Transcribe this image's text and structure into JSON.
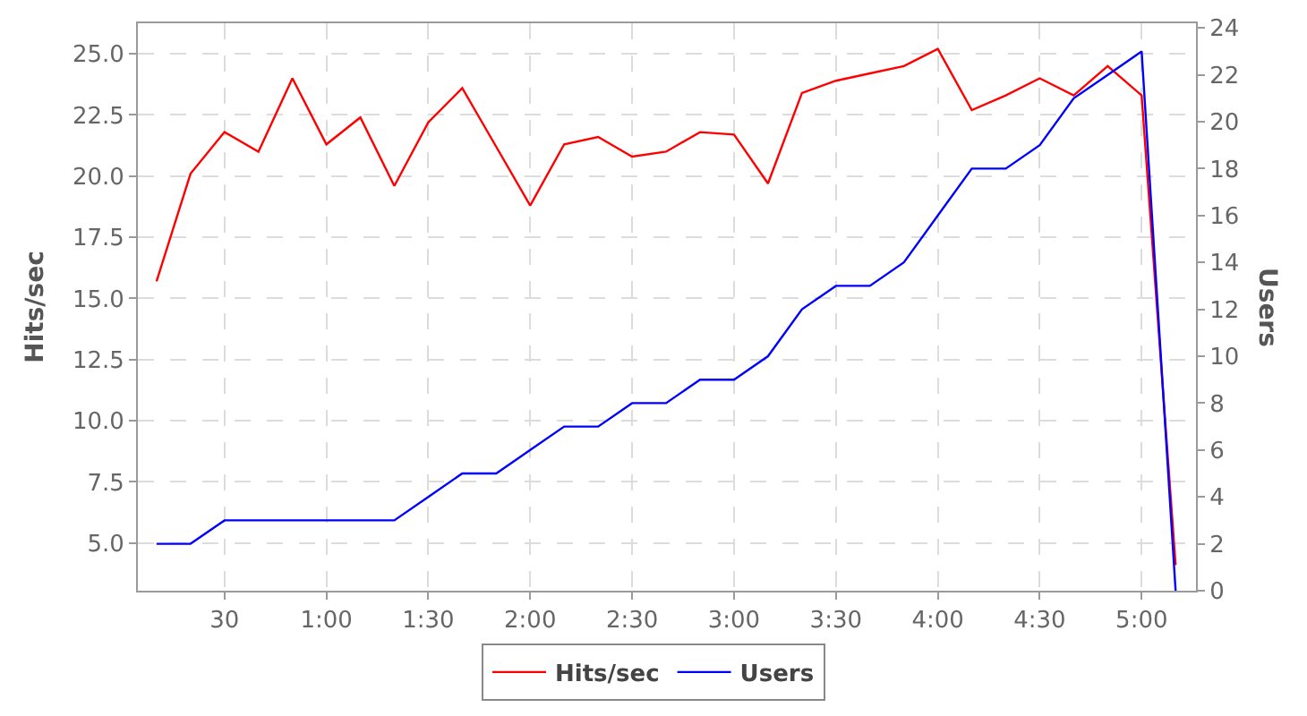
{
  "chart_data": {
    "type": "line",
    "ylabel": "Hits/sec",
    "y2label": "Users",
    "x": [
      10,
      20,
      30,
      40,
      50,
      60,
      70,
      80,
      90,
      100,
      110,
      120,
      130,
      140,
      150,
      160,
      170,
      180,
      190,
      200,
      210,
      220,
      230,
      240,
      250,
      260,
      270,
      280,
      290,
      300,
      310
    ],
    "series": [
      {
        "name": "Hits/sec",
        "color": "#ff0000",
        "values": [
          15.7,
          20.1,
          21.8,
          21.0,
          24.0,
          21.3,
          22.4,
          19.6,
          22.2,
          23.6,
          21.2,
          18.8,
          21.3,
          21.6,
          20.8,
          21.0,
          21.8,
          21.7,
          19.7,
          23.4,
          23.9,
          24.2,
          24.5,
          25.2,
          22.7,
          23.3,
          24.0,
          23.3,
          24.5,
          23.3,
          4.1
        ]
      },
      {
        "name": "Users",
        "color": "#0000ff",
        "axis": "y2",
        "values": [
          2,
          2,
          3,
          3,
          3,
          3,
          3,
          3,
          4,
          5,
          5,
          6,
          7,
          7,
          8,
          8,
          9,
          9,
          10,
          12,
          13,
          13,
          14,
          16,
          18,
          18,
          19,
          21,
          22,
          23,
          0
        ]
      }
    ],
    "xlim": [
      4.5,
      316
    ],
    "xticks": [
      30,
      {
        "value": 60,
        "label": "1:00"
      },
      {
        "value": 90,
        "label": "1:30"
      },
      {
        "value": 120,
        "label": "2:00"
      },
      {
        "value": 150,
        "label": "2:30"
      },
      {
        "value": 180,
        "label": "3:00"
      },
      {
        "value": 210,
        "label": "3:30"
      },
      {
        "value": 240,
        "label": "4:00"
      },
      {
        "value": 270,
        "label": "4:30"
      },
      {
        "value": 300,
        "label": "5:00"
      }
    ],
    "ylim": [
      3.05,
      26.25
    ],
    "yticks": [
      {
        "value": 5,
        "label": "5.0"
      },
      7.5,
      {
        "value": 10,
        "label": "10.0"
      },
      12.5,
      {
        "value": 15,
        "label": "15.0"
      },
      17.5,
      {
        "value": 20,
        "label": "20.0"
      },
      22.5,
      {
        "value": 25,
        "label": "25.0"
      }
    ],
    "y2lim": [
      0,
      24.2
    ],
    "y2ticks": [
      0,
      2,
      4,
      6,
      8,
      10,
      12,
      14,
      16,
      18,
      20,
      22,
      24
    ],
    "grid": true,
    "legend": "bottom",
    "line_style": "solid"
  }
}
